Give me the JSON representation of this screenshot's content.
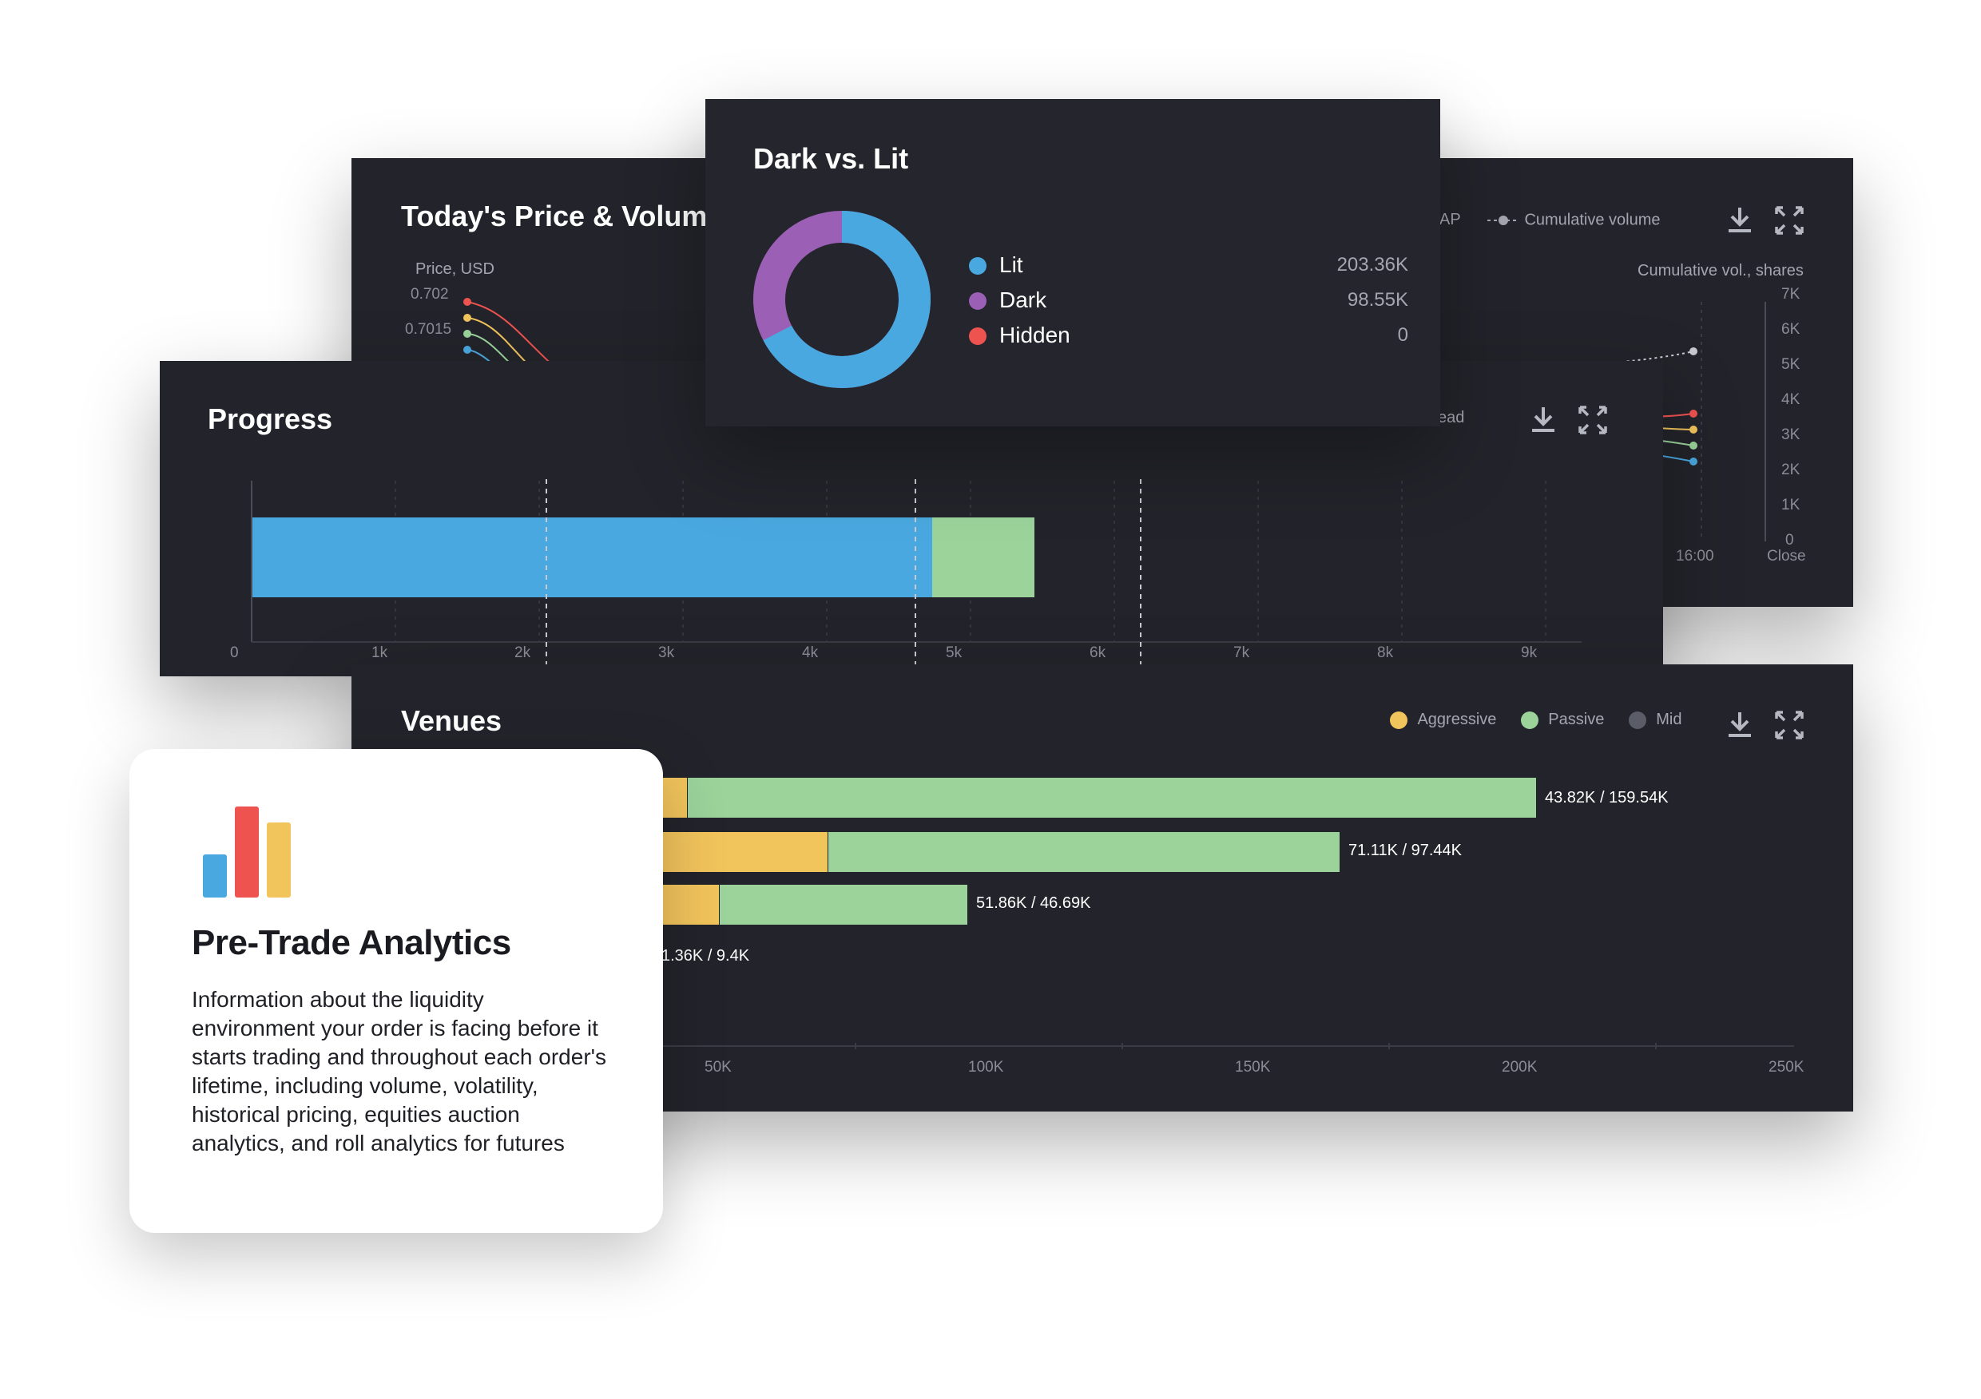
{
  "price_panel": {
    "title": "Today's Price & Volume",
    "left_axis_label": "Price, USD",
    "left_ticks": [
      "0.702",
      "0.7015"
    ],
    "right_axis_label": "Cumulative vol., shares",
    "right_ticks": [
      "7K",
      "6K",
      "5K",
      "4K",
      "3K",
      "2K",
      "1K",
      "0"
    ],
    "x_ticks": [
      "16:00",
      "Close"
    ],
    "legend_partial": "AP",
    "legend_cumulative": "Cumulative volume",
    "download_icon": "download-icon",
    "expand_icon": "expand-icon"
  },
  "progress_panel": {
    "title": "Progress",
    "legend_partial": "ead",
    "x_ticks": [
      "0",
      "1k",
      "2k",
      "3k",
      "4k",
      "5k",
      "6k",
      "7k",
      "8k",
      "9k"
    ],
    "bar_colors": [
      "#4aa8e0",
      "#9bd39b"
    ]
  },
  "dark_panel": {
    "title": "Dark vs. Lit",
    "items": [
      {
        "label": "Lit",
        "value": "203.36K",
        "color": "#4aa8e0"
      },
      {
        "label": "Dark",
        "value": "98.55K",
        "color": "#9b5fb5"
      },
      {
        "label": "Hidden",
        "value": "0",
        "color": "#ef5350"
      }
    ]
  },
  "venues_panel": {
    "title": "Venues",
    "legend": [
      {
        "label": "Aggressive",
        "color": "#f2c45c"
      },
      {
        "label": "Passive",
        "color": "#9bd39b"
      },
      {
        "label": "Mid",
        "color": "#5a5d67"
      }
    ],
    "bar_labels": [
      "43.82K / 159.54K",
      "71.11K / 97.44K",
      "51.86K / 46.69K",
      "1.36K / 9.4K"
    ],
    "x_ticks": [
      "50K",
      "100K",
      "150K",
      "200K",
      "250K"
    ]
  },
  "info_card": {
    "title": "Pre-Trade Analytics",
    "description": "Information about the liquidity environment your order is facing before it starts trading and throughout each order's lifetime, including volume, volatility, historical pricing, equities auction analytics, and roll analytics for futures",
    "logo_colors": [
      "#4aa8e0",
      "#ef5350",
      "#f2c45c"
    ]
  }
}
